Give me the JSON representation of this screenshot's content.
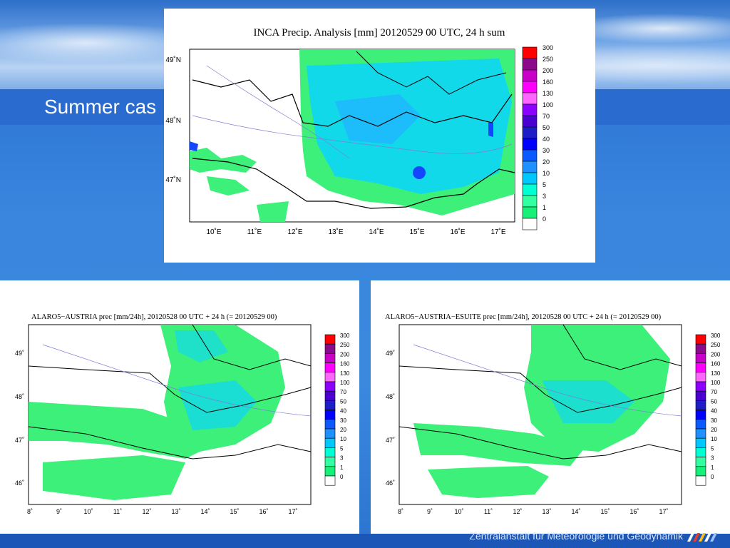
{
  "slide": {
    "title": "Summer cas",
    "footer": "Zentralanstalt für Meteorologie und Geodynamik"
  },
  "maps": {
    "top": {
      "title": "INCA Precip. Analysis [mm] 20120529 00 UTC, 24 h sum",
      "lat_labels": [
        "49˚N",
        "48˚N",
        "47˚N"
      ],
      "lon_labels": [
        "10˚E",
        "11˚E",
        "12˚E",
        "13˚E",
        "14˚E",
        "15˚E",
        "16˚E",
        "17˚E"
      ]
    },
    "left": {
      "title": "ALARO5−AUSTRIA prec [mm/24h], 20120528 00 UTC + 24 h (= 20120529 00)",
      "lat_labels": [
        "49˚",
        "48˚",
        "47˚",
        "46˚"
      ],
      "lon_labels": [
        "8˚",
        "9˚",
        "10˚",
        "11˚",
        "12˚",
        "13˚",
        "14˚",
        "15˚",
        "16˚",
        "17˚"
      ]
    },
    "right": {
      "title": "ALARO5−AUSTRIA−ESUITE prec [mm/24h], 20120528 00 UTC + 24 h (= 20120529 00)",
      "lat_labels": [
        "49˚",
        "48˚",
        "47˚",
        "46˚"
      ],
      "lon_labels": [
        "8˚",
        "9˚",
        "10˚",
        "11˚",
        "12˚",
        "13˚",
        "14˚",
        "15˚",
        "16˚",
        "17˚"
      ]
    }
  },
  "colorbar": {
    "labels": [
      "300",
      "250",
      "200",
      "160",
      "130",
      "100",
      "70",
      "50",
      "40",
      "30",
      "20",
      "10",
      "5",
      "3",
      "1",
      "0"
    ],
    "colors": [
      "#ff0000",
      "#8b0a8b",
      "#c800c8",
      "#ff00ff",
      "#ff66ff",
      "#8c00ff",
      "#4b00d2",
      "#1e1ec8",
      "#0000ff",
      "#0a5aff",
      "#1e90ff",
      "#00c8ff",
      "#00ffd2",
      "#32ffa0",
      "#14f078",
      "#ffffff"
    ]
  },
  "colors": {
    "green": "#3cf07a",
    "cyan": "#12d9ea",
    "lightblue": "#20b4ff",
    "blue": "#1446ff"
  }
}
